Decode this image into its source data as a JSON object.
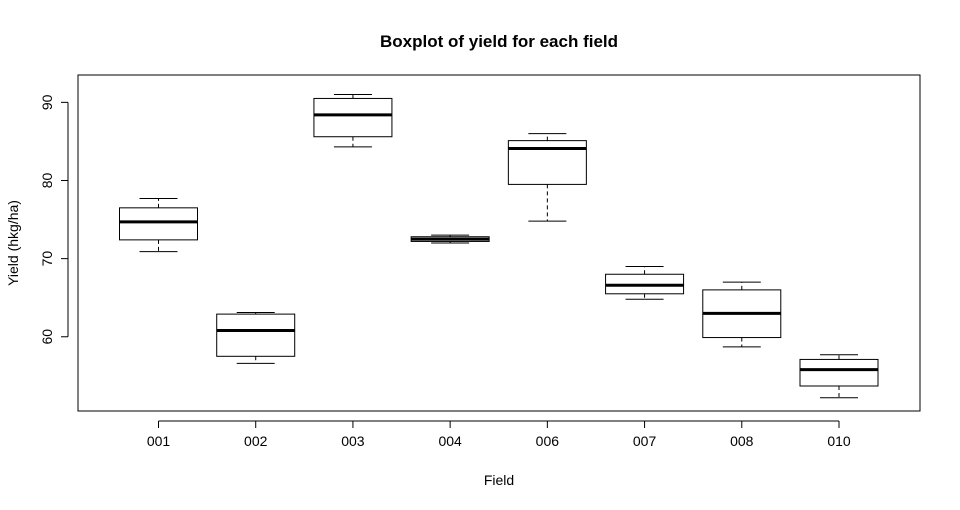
{
  "chart_data": {
    "type": "boxplot",
    "title": "Boxplot of yield for each field",
    "xlabel": "Field",
    "ylabel": "Yield (hkg/ha)",
    "ylim": [
      50.5,
      93.5
    ],
    "yticks": [
      60,
      70,
      80,
      90
    ],
    "grid": false,
    "categories": [
      "001",
      "002",
      "003",
      "004",
      "006",
      "007",
      "008",
      "010"
    ],
    "boxes": [
      {
        "category": "001",
        "min": 70.9,
        "q1": 72.4,
        "median": 74.7,
        "q3": 76.5,
        "max": 77.7
      },
      {
        "category": "002",
        "min": 56.6,
        "q1": 57.5,
        "median": 60.8,
        "q3": 62.9,
        "max": 63.1
      },
      {
        "category": "003",
        "min": 84.3,
        "q1": 85.6,
        "median": 88.4,
        "q3": 90.5,
        "max": 91.0
      },
      {
        "category": "004",
        "min": 72.0,
        "q1": 72.2,
        "median": 72.5,
        "q3": 72.8,
        "max": 73.0
      },
      {
        "category": "006",
        "min": 74.8,
        "q1": 79.5,
        "median": 84.1,
        "q3": 85.1,
        "max": 86.0
      },
      {
        "category": "007",
        "min": 64.8,
        "q1": 65.5,
        "median": 66.6,
        "q3": 68.0,
        "max": 69.0
      },
      {
        "category": "008",
        "min": 58.7,
        "q1": 59.9,
        "median": 63.0,
        "q3": 66.0,
        "max": 67.0
      },
      {
        "category": "010",
        "min": 52.2,
        "q1": 53.7,
        "median": 55.8,
        "q3": 57.1,
        "max": 57.7
      }
    ]
  }
}
